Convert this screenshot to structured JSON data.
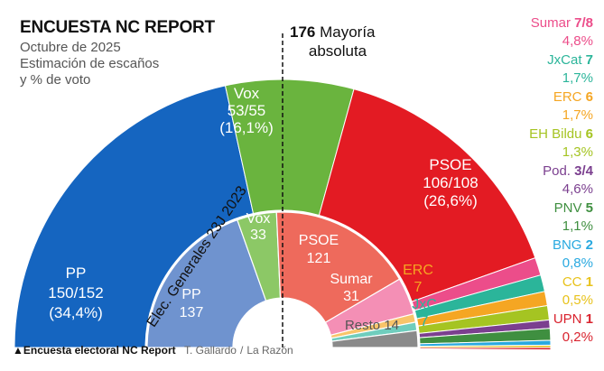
{
  "header": {
    "title": "ENCUESTA NC REPORT",
    "subtitle_lines": [
      "Octubre de 2025",
      "Estimación de escaños",
      "y % de voto"
    ]
  },
  "majority": {
    "value": "176",
    "label_line1": "Mayoría",
    "label_line2": "absoluta"
  },
  "footer": {
    "triangle": "▲",
    "source": "Encuesta electoral NC Report",
    "author": "T. Gallardo",
    "separator": "/",
    "publisher": "La Razón"
  },
  "chart_data": [
    {
      "type": "semicircle_parliament",
      "title": "Encuesta NC Report, Octubre de 2025",
      "total_seats": 350,
      "series": [
        {
          "party": "PP",
          "seats_label": "150/152",
          "seats": 151,
          "pct_label": "(34,4%)",
          "pct": 34.4,
          "color": "#1565c0"
        },
        {
          "party": "Vox",
          "seats_label": "53/55",
          "seats": 54,
          "pct_label": "(16,1%)",
          "pct": 16.1,
          "color": "#6ab43e"
        },
        {
          "party": "PSOE",
          "seats_label": "106/108",
          "seats": 107,
          "pct_label": "(26,6%)",
          "pct": 26.6,
          "color": "#e31b23"
        },
        {
          "party": "Sumar",
          "seats_label": "7/8",
          "seats": 7.5,
          "pct_label": "4,8%",
          "pct": 4.8,
          "color": "#ec4d8a"
        },
        {
          "party": "JxCat",
          "seats_label": "7",
          "seats": 7,
          "pct_label": "1,7%",
          "pct": 1.7,
          "color": "#2bb59a"
        },
        {
          "party": "ERC",
          "seats_label": "6",
          "seats": 6,
          "pct_label": "1,7%",
          "pct": 1.7,
          "color": "#f5a623"
        },
        {
          "party": "EH Bildu",
          "seats_label": "6",
          "seats": 6,
          "pct_label": "1,3%",
          "pct": 1.3,
          "color": "#a5c422"
        },
        {
          "party": "Pod.",
          "seats_label": "3/4",
          "seats": 3.5,
          "pct_label": "4,6%",
          "pct": 4.6,
          "color": "#7b3f8f"
        },
        {
          "party": "PNV",
          "seats_label": "5",
          "seats": 5,
          "pct_label": "1,1%",
          "pct": 1.1,
          "color": "#3f8f40"
        },
        {
          "party": "BNG",
          "seats_label": "2",
          "seats": 2,
          "pct_label": "0,8%",
          "pct": 0.8,
          "color": "#29a9e0"
        },
        {
          "party": "CC",
          "seats_label": "1",
          "seats": 1,
          "pct_label": "0,5%",
          "pct": 0.5,
          "color": "#e8c21a"
        },
        {
          "party": "UPN",
          "seats_label": "1",
          "seats": 1,
          "pct_label": "0,2%",
          "pct": 0.2,
          "color": "#d9232e"
        }
      ]
    },
    {
      "type": "semicircle_parliament",
      "title": "Elec. Generales 23J 2023",
      "total_seats": 350,
      "series": [
        {
          "party": "PP",
          "seats": 137,
          "color": "#6f93cf"
        },
        {
          "party": "Vox",
          "seats": 33,
          "color": "#8cc866"
        },
        {
          "party": "PSOE",
          "seats": 121,
          "color": "#ee6a5c"
        },
        {
          "party": "Sumar",
          "seats": 31,
          "color": "#f48fb5"
        },
        {
          "party": "ERC",
          "seats": 7,
          "color": "#f8c46a"
        },
        {
          "party": "JxC",
          "seats": 7,
          "color": "#6fcdbd"
        },
        {
          "party": "Resto",
          "seats": 14,
          "color": "#8a8a8a"
        }
      ]
    }
  ]
}
